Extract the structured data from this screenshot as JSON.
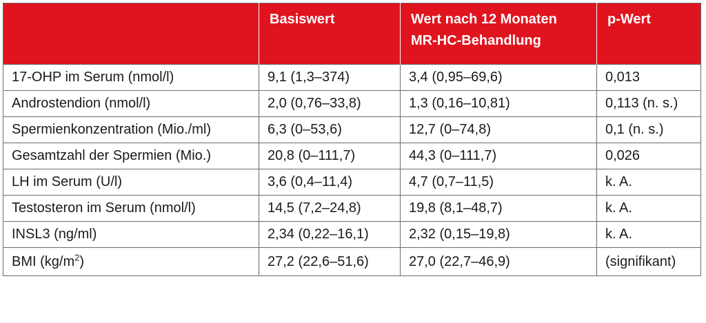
{
  "table": {
    "headers": [
      "",
      "Basiswert",
      "Wert nach 12 Monaten MR-HC-Behandlung",
      "p-Wert"
    ],
    "header_lines": {
      "col3_line1": "Wert nach 12 Monaten",
      "col3_line2": "MR-HC-Behandlung"
    },
    "rows": [
      {
        "label": "17-OHP im Serum (nmol/l)",
        "basis": "9,1 (1,3–374)",
        "after": "3,4 (0,95–69,6)",
        "p": "0,013"
      },
      {
        "label": "Androstendion (nmol/l)",
        "basis": "2,0 (0,76–33,8)",
        "after": "1,3 (0,16–10,81)",
        "p": "0,113 (n. s.)"
      },
      {
        "label": "Spermienkonzentration (Mio./ml)",
        "basis": "6,3 (0–53,6)",
        "after": "12,7 (0–74,8)",
        "p": "0,1 (n. s.)"
      },
      {
        "label": "Gesamtzahl der Spermien (Mio.)",
        "basis": "20,8 (0–111,7)",
        "after": "44,3 (0–111,7)",
        "p": "0,026"
      },
      {
        "label": "LH im Serum (U/l)",
        "basis": "3,6 (0,4–11,4)",
        "after": "4,7 (0,7–11,5)",
        "p": "k. A."
      },
      {
        "label": "Testosteron im Serum (nmol/l)",
        "basis": "14,5 (7,2–24,8)",
        "after": "19,8 (8,1–48,7)",
        "p": "k. A."
      },
      {
        "label": "INSL3 (ng/ml)",
        "basis": "2,34 (0,22–16,1)",
        "after": "2,32 (0,15–19,8)",
        "p": "k. A."
      },
      {
        "label_main": "BMI (kg/m",
        "label_sup": "2",
        "label_end": ")",
        "basis": "27,2 (22,6–51,6)",
        "after": "27,0 (22,7–46,9)",
        "p": "(signifikant)"
      }
    ]
  },
  "colors": {
    "header_bg": "#e0141f",
    "header_text": "#ffffff",
    "border": "#6b6b6b"
  }
}
